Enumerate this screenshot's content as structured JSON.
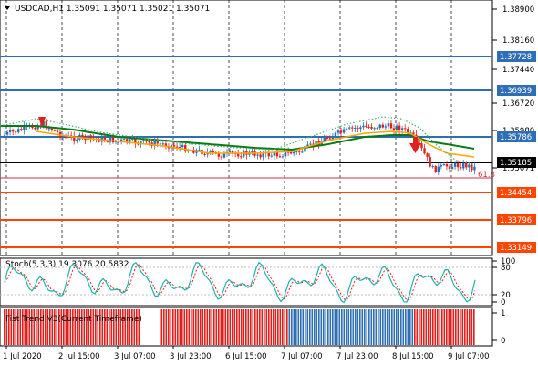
{
  "header": {
    "dropdown_icon": "triangle-down-icon",
    "title": "USDCAD,H1  1.35091 1.35071 1.35021 1.35071"
  },
  "main": {
    "price_ticks": [
      "1.38900",
      "1.38160",
      "1.37440",
      "1.36720",
      "1.35980",
      "1.35071"
    ],
    "price_labels": [
      {
        "text": "1.37728",
        "color": "#2e6eb5"
      },
      {
        "text": "1.36939",
        "color": "#2e6eb5"
      },
      {
        "text": "1.35786",
        "color": "#2e6eb5"
      },
      {
        "text": "1.35185",
        "color": "#000000"
      },
      {
        "text": "1.34454",
        "color": "#ff4500"
      },
      {
        "text": "1.33796",
        "color": "#ff4500"
      },
      {
        "text": "1.33149",
        "color": "#ff4500"
      }
    ],
    "fib_label": "61.8"
  },
  "stoch": {
    "title": "Stoch(5,3,3) 19.3076 20.5832",
    "ticks": [
      "100",
      "80",
      "20",
      "0"
    ]
  },
  "trend": {
    "title": "Fist Trend V3(Current Timeframe)",
    "ticks": [
      "1",
      "0"
    ]
  },
  "time_axis": {
    "labels": [
      "1 Jul 2020",
      "2 Jul 15:00",
      "3 Jul 07:00",
      "3 Jul 23:00",
      "6 Jul 15:00",
      "7 Jul 07:00",
      "7 Jul 23:00",
      "8 Jul 15:00",
      "9 Jul 07:00"
    ]
  },
  "colors": {
    "blue_level": "#2e6eb5",
    "red_level": "#ff4500",
    "bull": "#2e6eb5",
    "bear": "#e0201c",
    "ma_green": "#0a7a14",
    "ma_orange": "#ffa500",
    "stoch_main": "#20b2aa",
    "stoch_signal": "#e0201c"
  }
}
